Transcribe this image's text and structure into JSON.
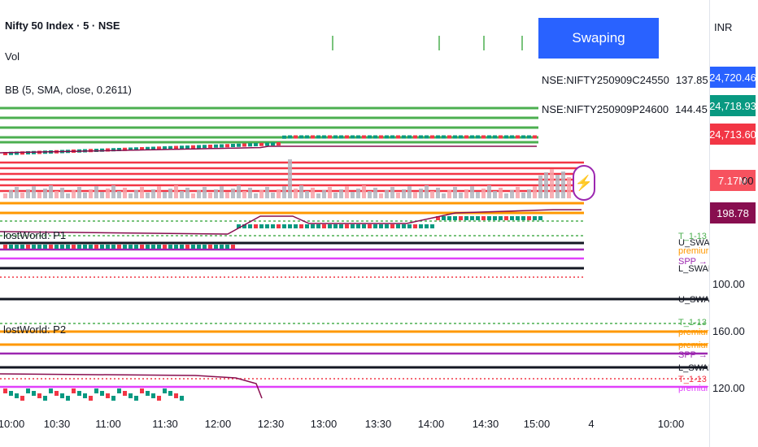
{
  "header": {
    "symbol_title": "Nifty 50 Index · 5 · NSE",
    "vol_label": "Vol",
    "bb_label": "BB (5, SMA, close, 0.2611)"
  },
  "panels": {
    "p1_label": "lostWorld: P1",
    "p2_label": "lostWorld: P2"
  },
  "swap_button": {
    "label": "Swaping"
  },
  "options_table": [
    {
      "symbol": "NSE:NIFTY250909C24550",
      "price": "137.85"
    },
    {
      "symbol": "NSE:NIFTY250909P24600",
      "price": "144.45"
    }
  ],
  "price_axis": {
    "currency": "INR",
    "badges": [
      {
        "value": "24,720.46",
        "color": "#2962ff"
      },
      {
        "value": "24,718.93",
        "color": "#089981"
      },
      {
        "value": "24,713.60",
        "color": "#f23645"
      },
      {
        "value": "7.17M",
        "color": "#f7525f"
      },
      {
        "value": "198.78",
        "color": "#880e4f"
      }
    ],
    "volume_tail": "00",
    "p1_tick": "100.00",
    "p2_ticks": [
      "160.00",
      "120.00"
    ]
  },
  "time_axis": [
    "10:00",
    "10:30",
    "11:00",
    "11:30",
    "12:00",
    "12:30",
    "13:00",
    "13:30",
    "14:00",
    "14:30",
    "15:00",
    "4",
    "10:00"
  ],
  "line_labels": [
    "U_SWAP",
    "T_1-13",
    "premiur",
    "SPP →",
    "L_SWAP"
  ],
  "colors": {
    "green": "#4caf50",
    "red": "#f23645",
    "orange": "#ff9800",
    "purple": "#9c27b0",
    "pink": "#e040fb",
    "dark": "#131722",
    "maroon": "#880e4f"
  }
}
